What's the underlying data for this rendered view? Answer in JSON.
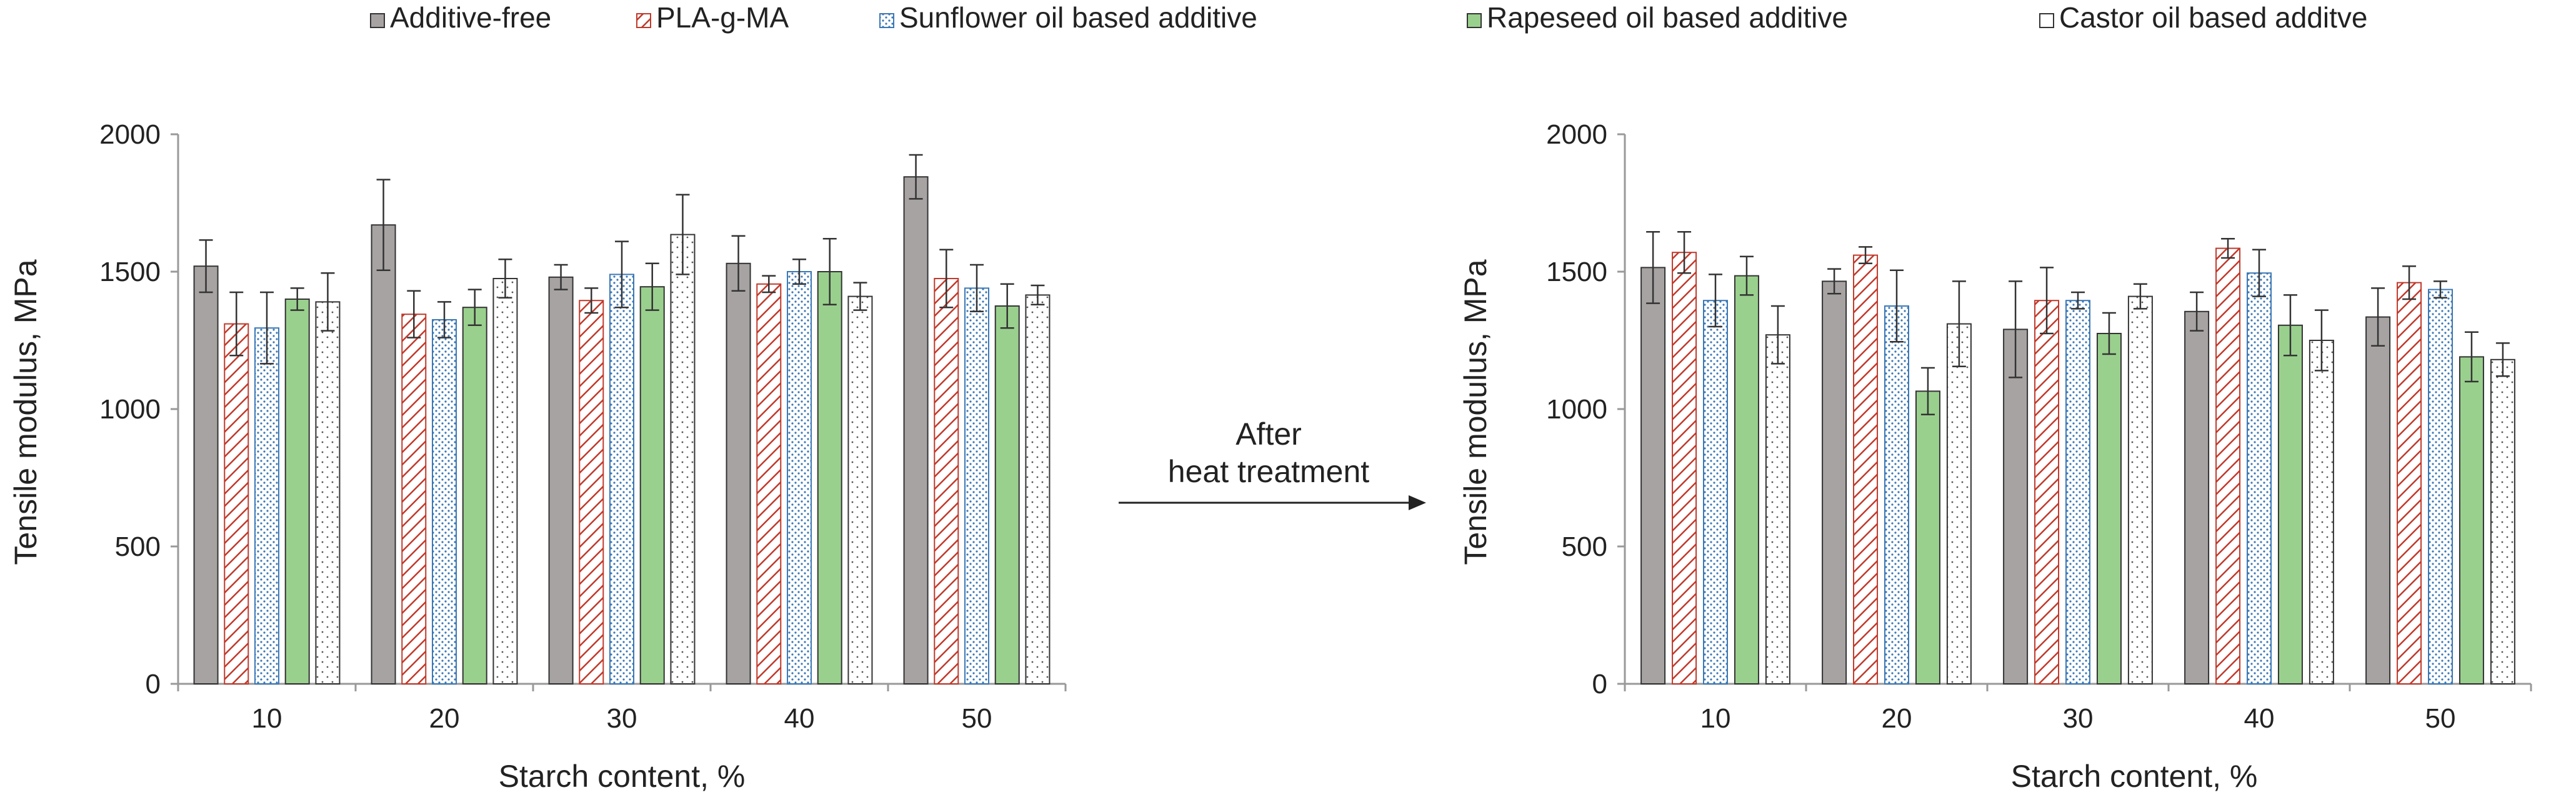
{
  "legend": [
    "Additive-free",
    "PLA-g-MA",
    "Sunflower oil based additive",
    "Rapeseed oil based additive",
    "Castor oil based additve"
  ],
  "arrow": {
    "line1": "After",
    "line2": "heat treatment"
  },
  "colors": {
    "additive_free": "#a8a3a3",
    "pla_stripe": "#c0392b",
    "sunflower_dots": "#3b78b5",
    "rapeseed": "#9ad08e",
    "castor_dots": "#555555",
    "axis": "#999999",
    "error_bar": "#333333"
  },
  "chart_data": [
    {
      "type": "bar",
      "title": "",
      "xlabel": "Starch content, %",
      "ylabel": "Tensile modulus, MPa",
      "ylim": [
        0,
        2000
      ],
      "yticks": [
        "0",
        "500",
        "1000",
        "1500",
        "2000"
      ],
      "categories": [
        "10",
        "20",
        "30",
        "40",
        "50"
      ],
      "series": [
        {
          "name": "Additive-free",
          "values": [
            1520,
            1670,
            1480,
            1530,
            1845
          ],
          "errors": [
            95,
            165,
            45,
            100,
            80
          ]
        },
        {
          "name": "PLA-g-MA",
          "values": [
            1310,
            1345,
            1395,
            1455,
            1475
          ],
          "errors": [
            115,
            85,
            45,
            30,
            105
          ]
        },
        {
          "name": "Sunflower oil based additive",
          "values": [
            1295,
            1325,
            1490,
            1500,
            1440
          ],
          "errors": [
            130,
            65,
            120,
            45,
            85
          ]
        },
        {
          "name": "Rapeseed oil based additive",
          "values": [
            1400,
            1370,
            1445,
            1500,
            1375
          ],
          "errors": [
            40,
            65,
            85,
            120,
            80
          ]
        },
        {
          "name": "Castor oil based additve",
          "values": [
            1390,
            1475,
            1635,
            1410,
            1415
          ],
          "errors": [
            105,
            70,
            145,
            50,
            35
          ]
        }
      ]
    },
    {
      "type": "bar",
      "title": "",
      "xlabel": "Starch content, %",
      "ylabel": "Tensile modulus, MPa",
      "ylim": [
        0,
        2000
      ],
      "yticks": [
        "0",
        "500",
        "1000",
        "1500",
        "2000"
      ],
      "categories": [
        "10",
        "20",
        "30",
        "40",
        "50"
      ],
      "series": [
        {
          "name": "Additive-free",
          "values": [
            1515,
            1465,
            1290,
            1355,
            1335
          ],
          "errors": [
            130,
            45,
            175,
            70,
            105
          ]
        },
        {
          "name": "PLA-g-MA",
          "values": [
            1570,
            1560,
            1395,
            1585,
            1460
          ],
          "errors": [
            75,
            30,
            120,
            35,
            60
          ]
        },
        {
          "name": "Sunflower oil based additive",
          "values": [
            1395,
            1375,
            1395,
            1495,
            1435
          ],
          "errors": [
            95,
            130,
            30,
            85,
            30
          ]
        },
        {
          "name": "Rapeseed oil based additive",
          "values": [
            1485,
            1065,
            1275,
            1305,
            1190
          ],
          "errors": [
            70,
            85,
            75,
            110,
            90
          ]
        },
        {
          "name": "Castor oil based additve",
          "values": [
            1270,
            1310,
            1410,
            1250,
            1180
          ],
          "errors": [
            105,
            155,
            45,
            110,
            60
          ]
        }
      ]
    }
  ]
}
